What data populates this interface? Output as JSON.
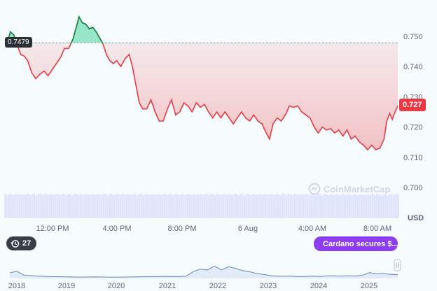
{
  "chart_data": [
    {
      "type": "area",
      "x_ticks": [
        "12:00 PM",
        "4:00 PM",
        "8:00 PM",
        "6 Aug",
        "4:00 AM",
        "8:00 AM"
      ],
      "y_ticks": [
        "0.750",
        "0.740",
        "0.730",
        "0.720",
        "0.710",
        "0.700"
      ],
      "ylim": [
        0.698,
        0.752
      ],
      "unit_label": "USD",
      "reference_value": 0.7479,
      "reference_label": "0.7479",
      "current_price": 0.727,
      "current_price_label": "0.727",
      "price_points": [
        [
          0.0,
          0.7479
        ],
        [
          0.5,
          0.7515
        ],
        [
          1.0,
          0.7505
        ],
        [
          1.5,
          0.747
        ],
        [
          2.0,
          0.744
        ],
        [
          2.5,
          0.7435
        ],
        [
          3.0,
          0.742
        ],
        [
          3.6,
          0.738
        ],
        [
          4.2,
          0.736
        ],
        [
          4.8,
          0.7375
        ],
        [
          5.4,
          0.7385
        ],
        [
          6.0,
          0.737
        ],
        [
          6.6,
          0.739
        ],
        [
          7.2,
          0.741
        ],
        [
          7.8,
          0.743
        ],
        [
          8.4,
          0.746
        ],
        [
          9.0,
          0.746
        ],
        [
          9.6,
          0.749
        ],
        [
          10.1,
          0.753
        ],
        [
          10.5,
          0.7565
        ],
        [
          11.0,
          0.7545
        ],
        [
          11.5,
          0.754
        ],
        [
          12.0,
          0.7525
        ],
        [
          12.5,
          0.753
        ],
        [
          13.0,
          0.7515
        ],
        [
          13.5,
          0.7495
        ],
        [
          14.0,
          0.7475
        ],
        [
          14.5,
          0.744
        ],
        [
          15.0,
          0.742
        ],
        [
          15.5,
          0.741
        ],
        [
          16.0,
          0.742
        ],
        [
          16.6,
          0.74
        ],
        [
          17.2,
          0.7425
        ],
        [
          17.8,
          0.744
        ],
        [
          18.3,
          0.74
        ],
        [
          18.8,
          0.734
        ],
        [
          19.3,
          0.728
        ],
        [
          19.8,
          0.726
        ],
        [
          20.4,
          0.726
        ],
        [
          21.0,
          0.729
        ],
        [
          21.6,
          0.725
        ],
        [
          22.2,
          0.722
        ],
        [
          22.8,
          0.722
        ],
        [
          23.4,
          0.726
        ],
        [
          24.0,
          0.729
        ],
        [
          24.6,
          0.724
        ],
        [
          25.2,
          0.725
        ],
        [
          25.8,
          0.728
        ],
        [
          26.4,
          0.727
        ],
        [
          27.0,
          0.725
        ],
        [
          27.6,
          0.728
        ],
        [
          28.2,
          0.7265
        ],
        [
          28.8,
          0.7275
        ],
        [
          29.4,
          0.725
        ],
        [
          30.0,
          0.723
        ],
        [
          30.6,
          0.725
        ],
        [
          31.2,
          0.723
        ],
        [
          31.8,
          0.725
        ],
        [
          32.4,
          0.723
        ],
        [
          33.0,
          0.721
        ],
        [
          33.6,
          0.723
        ],
        [
          34.2,
          0.725
        ],
        [
          34.8,
          0.723
        ],
        [
          35.4,
          0.722
        ],
        [
          36.0,
          0.724
        ],
        [
          36.6,
          0.722
        ],
        [
          37.2,
          0.721
        ],
        [
          37.8,
          0.718
        ],
        [
          38.3,
          0.716
        ],
        [
          38.8,
          0.721
        ],
        [
          39.4,
          0.723
        ],
        [
          40.0,
          0.722
        ],
        [
          40.6,
          0.724
        ],
        [
          41.2,
          0.727
        ],
        [
          41.8,
          0.7265
        ],
        [
          42.4,
          0.727
        ],
        [
          43.0,
          0.725
        ],
        [
          43.6,
          0.724
        ],
        [
          44.2,
          0.723
        ],
        [
          44.8,
          0.72
        ],
        [
          45.4,
          0.718
        ],
        [
          46.0,
          0.72
        ],
        [
          46.6,
          0.719
        ],
        [
          47.2,
          0.7195
        ],
        [
          47.8,
          0.718
        ],
        [
          48.4,
          0.719
        ],
        [
          49.0,
          0.717
        ],
        [
          49.6,
          0.719
        ],
        [
          50.2,
          0.716
        ],
        [
          50.8,
          0.717
        ],
        [
          51.4,
          0.715
        ],
        [
          52.0,
          0.714
        ],
        [
          52.6,
          0.7125
        ],
        [
          53.2,
          0.714
        ],
        [
          53.8,
          0.7125
        ],
        [
          54.4,
          0.713
        ],
        [
          55.0,
          0.716
        ],
        [
          55.4,
          0.722
        ],
        [
          55.8,
          0.7245
        ],
        [
          56.2,
          0.7225
        ],
        [
          56.6,
          0.725
        ],
        [
          57.0,
          0.727
        ]
      ],
      "volume_level": 0.92
    },
    {
      "type": "area",
      "x_ticks": [
        "2018",
        "2019",
        "2020",
        "2021",
        "2022",
        "2023",
        "2024",
        "2025"
      ],
      "history_points": [
        [
          0,
          0.25
        ],
        [
          0.5,
          0.32
        ],
        [
          1,
          0.15
        ],
        [
          2,
          0.1
        ],
        [
          3,
          0.08
        ],
        [
          4,
          0.07
        ],
        [
          5,
          0.06
        ],
        [
          6,
          0.07
        ],
        [
          7,
          0.06
        ],
        [
          8,
          0.06
        ],
        [
          9,
          0.07
        ],
        [
          10,
          0.08
        ],
        [
          11,
          0.09
        ],
        [
          12,
          0.08
        ],
        [
          12.5,
          0.1
        ],
        [
          13,
          0.3
        ],
        [
          13.5,
          0.42
        ],
        [
          14,
          0.38
        ],
        [
          14.5,
          0.55
        ],
        [
          15,
          0.38
        ],
        [
          15.5,
          0.52
        ],
        [
          16,
          0.45
        ],
        [
          16.5,
          0.35
        ],
        [
          17,
          0.3
        ],
        [
          17.5,
          0.22
        ],
        [
          18,
          0.18
        ],
        [
          18.5,
          0.12
        ],
        [
          19,
          0.1
        ],
        [
          19.5,
          0.1
        ],
        [
          20,
          0.1
        ],
        [
          20.5,
          0.08
        ],
        [
          21,
          0.09
        ],
        [
          21.5,
          0.1
        ],
        [
          22,
          0.09
        ],
        [
          22.5,
          0.11
        ],
        [
          23,
          0.12
        ],
        [
          23.5,
          0.1
        ],
        [
          24,
          0.12
        ],
        [
          24.5,
          0.11
        ],
        [
          25,
          0.14
        ],
        [
          25.5,
          0.26
        ],
        [
          26,
          0.2
        ],
        [
          26.5,
          0.22
        ],
        [
          27,
          0.18
        ],
        [
          27.5,
          0.17
        ]
      ]
    }
  ],
  "events": {
    "count": "27",
    "icon": "history-icon"
  },
  "news": {
    "label": "Cardano secures $...",
    "icon": "lightning-icon"
  },
  "watermark": {
    "text": "CoinMarketCap"
  },
  "colors": {
    "up": "#16c784",
    "up_line": "#167a39",
    "down": "#ea3943",
    "volume": "#dfe3fb",
    "history_line": "#6b86b8",
    "history_fill": "#d7e0f5"
  }
}
